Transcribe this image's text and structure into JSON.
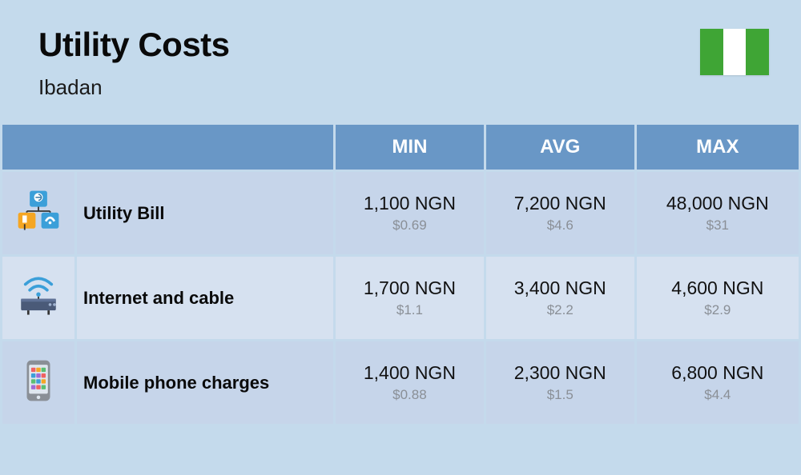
{
  "header": {
    "title": "Utility Costs",
    "subtitle": "Ibadan",
    "flag_colors": [
      "#3fa535",
      "#ffffff",
      "#3fa535"
    ]
  },
  "colors": {
    "page_bg": "#c4daec",
    "header_cell_bg": "#6997c6",
    "header_cell_empty_bg": "#6997c6",
    "row_alt_a": "#c6d5ea",
    "row_alt_b": "#d6e1f0",
    "text_primary": "#111111",
    "text_secondary": "#8a8f96"
  },
  "table": {
    "columns": [
      "MIN",
      "AVG",
      "MAX"
    ],
    "rows": [
      {
        "icon": "utility",
        "label": "Utility Bill",
        "values": [
          {
            "primary": "1,100 NGN",
            "secondary": "$0.69"
          },
          {
            "primary": "7,200 NGN",
            "secondary": "$4.6"
          },
          {
            "primary": "48,000 NGN",
            "secondary": "$31"
          }
        ]
      },
      {
        "icon": "internet",
        "label": "Internet and cable",
        "values": [
          {
            "primary": "1,700 NGN",
            "secondary": "$1.1"
          },
          {
            "primary": "3,400 NGN",
            "secondary": "$2.2"
          },
          {
            "primary": "4,600 NGN",
            "secondary": "$2.9"
          }
        ]
      },
      {
        "icon": "mobile",
        "label": "Mobile phone charges",
        "values": [
          {
            "primary": "1,400 NGN",
            "secondary": "$0.88"
          },
          {
            "primary": "2,300 NGN",
            "secondary": "$1.5"
          },
          {
            "primary": "6,800 NGN",
            "secondary": "$4.4"
          }
        ]
      }
    ]
  }
}
